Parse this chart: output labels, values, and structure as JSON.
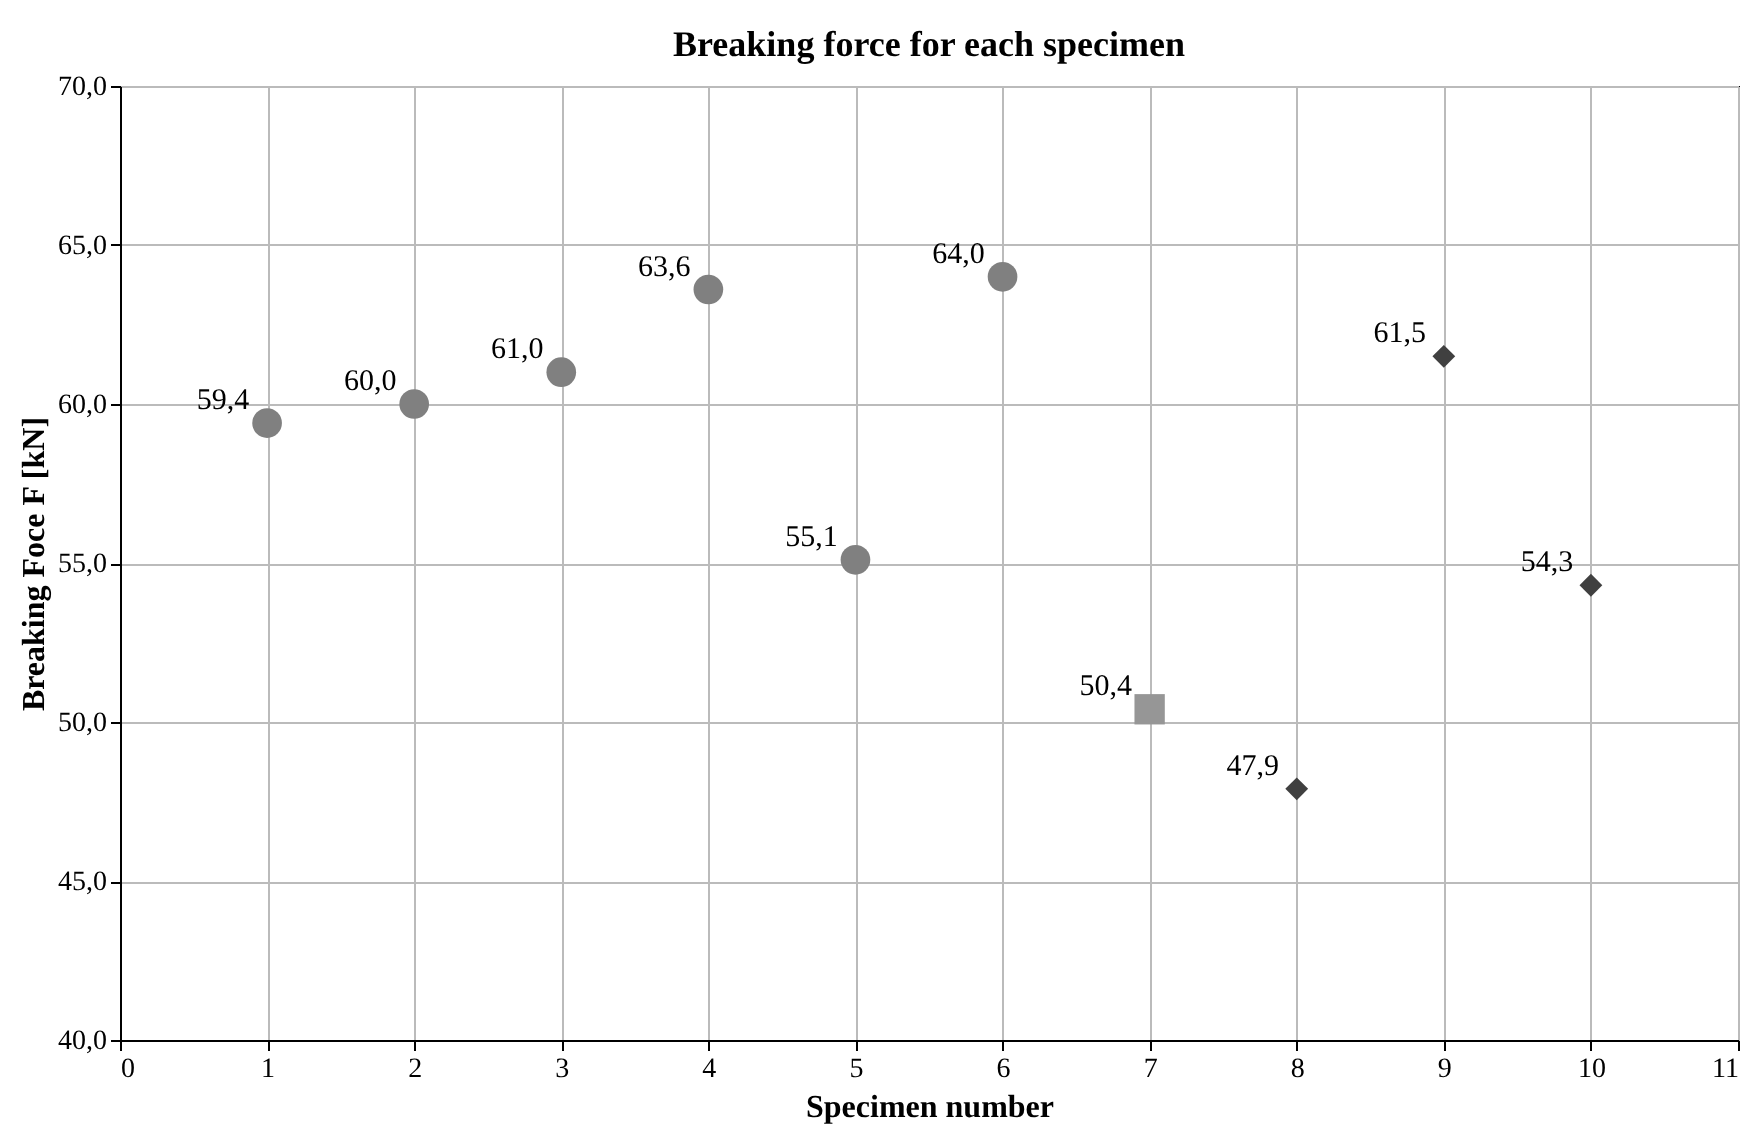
{
  "chart_data": {
    "type": "scatter",
    "title": "Breaking force for each specimen",
    "xlabel": "Specimen number",
    "ylabel": "Breaking Foce F [kN]",
    "series": [
      {
        "color": "#808080",
        "marker": "circle",
        "x": [
          1,
          2,
          3,
          4,
          5,
          6
        ],
        "values": [
          59.4,
          60.0,
          61.0,
          63.6,
          55.1,
          64.0
        ],
        "value_labels": [
          "59,4",
          "60,0",
          "61,0",
          "63,6",
          "55,1",
          "64,0"
        ]
      },
      {
        "color": "#969696",
        "marker": "square",
        "x": [
          7
        ],
        "values": [
          50.4
        ],
        "value_labels": [
          "50,4"
        ]
      },
      {
        "color": "#404040",
        "marker": "diamond",
        "x": [
          8,
          9,
          10
        ],
        "values": [
          47.9,
          61.5,
          54.3
        ],
        "value_labels": [
          "47,9",
          "61,5",
          "54,3"
        ]
      }
    ],
    "xlim": [
      0,
      11
    ],
    "xticks": [
      0,
      1,
      2,
      3,
      4,
      5,
      6,
      7,
      8,
      9,
      10,
      11
    ],
    "ylim": [
      40,
      70
    ],
    "yticks": [
      {
        "value": 40,
        "label": "40,0"
      },
      {
        "value": 45,
        "label": "45,0"
      },
      {
        "value": 50,
        "label": "50,0"
      },
      {
        "value": 55,
        "label": "55,0"
      },
      {
        "value": 60,
        "label": "60,0"
      },
      {
        "value": 65,
        "label": "65,0"
      },
      {
        "value": 70,
        "label": "70,0"
      }
    ],
    "grid": true
  }
}
